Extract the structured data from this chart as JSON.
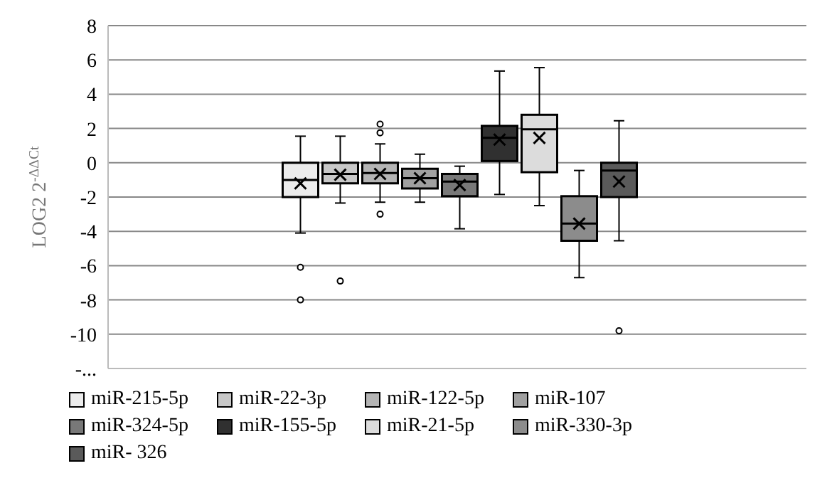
{
  "chart_data": {
    "type": "box",
    "ylabel": "LOG2 2$^{-ΔΔCt}$",
    "categories": [
      null
    ],
    "ylim": [
      -12,
      8
    ],
    "yticks": [
      {
        "value": -12,
        "label": "-..."
      },
      -10,
      -8,
      -6,
      -4,
      -2,
      0,
      2,
      4,
      6,
      8
    ],
    "grid": "y",
    "legend": "bottom",
    "series": [
      {
        "name": "miR-215-5p",
        "color": "#ececec",
        "boxes": [
          {
            "low": -4.1,
            "q1": -2.0,
            "median": -1.0,
            "q3": 0,
            "high": 1.55,
            "mean": -1.2,
            "outliers": [
              -6.1,
              -8.0
            ]
          }
        ]
      },
      {
        "name": "miR-22-3p",
        "color": "#c8c8c8",
        "boxes": [
          {
            "low": -2.35,
            "q1": -1.2,
            "median": -0.65,
            "q3": 0,
            "high": 1.55,
            "mean": -0.7,
            "outliers": [
              -6.9
            ]
          }
        ]
      },
      {
        "name": "miR-122-5p",
        "color": "#b4b4b4",
        "boxes": [
          {
            "low": -2.3,
            "q1": -1.2,
            "median": -0.6,
            "q3": 0,
            "high": 1.1,
            "mean": -0.65,
            "outliers": [
              2.25,
              1.75,
              -3.0
            ]
          }
        ]
      },
      {
        "name": "miR-107",
        "color": "#a0a0a0",
        "boxes": [
          {
            "low": -2.3,
            "q1": -1.5,
            "median": -0.9,
            "q3": -0.35,
            "high": 0.5,
            "mean": -0.9
          }
        ]
      },
      {
        "name": "miR-324-5p",
        "color": "#787878",
        "boxes": [
          {
            "low": -3.85,
            "q1": -1.95,
            "median": -1.1,
            "q3": -0.65,
            "high": -0.2,
            "mean": -1.3
          }
        ]
      },
      {
        "name": "miR-155-5p",
        "color": "#303030",
        "boxes": [
          {
            "low": -1.85,
            "q1": 0.1,
            "median": 1.45,
            "q3": 2.15,
            "high": 5.35,
            "mean": 1.35
          }
        ]
      },
      {
        "name": "miR-21-5p",
        "color": "#dcdcdc",
        "boxes": [
          {
            "low": -2.5,
            "q1": -0.55,
            "median": 1.95,
            "q3": 2.8,
            "high": 5.55,
            "mean": 1.45
          }
        ]
      },
      {
        "name": "miR-330-3p",
        "color": "#8c8c8c",
        "boxes": [
          {
            "low": -6.7,
            "q1": -4.55,
            "median": -3.55,
            "q3": -1.95,
            "high": -0.45,
            "mean": -3.55
          }
        ]
      },
      {
        "name": "miR- 326",
        "color": "#5a5a5a",
        "boxes": [
          {
            "low": -4.55,
            "q1": -2.0,
            "median": -0.45,
            "q3": 0,
            "high": 2.45,
            "mean": -1.1,
            "outliers": [
              -9.8
            ]
          }
        ]
      }
    ]
  }
}
